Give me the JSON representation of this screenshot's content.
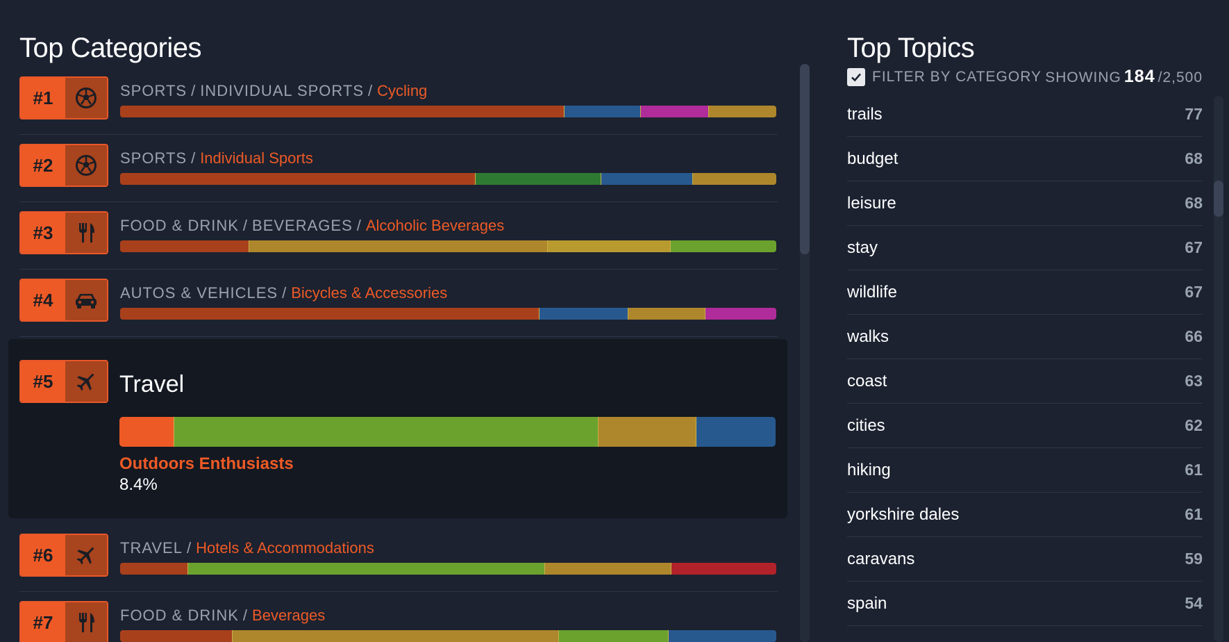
{
  "left_heading": "Top Categories",
  "right_heading": "Top Topics",
  "colors": {
    "orange": "#ee5a26",
    "rust": "#a9401c",
    "blue": "#27598f",
    "magenta": "#b02c9a",
    "gold": "#ae862b",
    "green": "#2f7a33",
    "lime": "#6ba22e",
    "red": "#b2222b"
  },
  "categories": [
    {
      "rank": "#1",
      "icon": "soccer-ball-icon",
      "path": [
        "SPORTS",
        "INDIVIDUAL SPORTS"
      ],
      "leaf": "Cycling",
      "segments": [
        {
          "color": "#a9401c",
          "share": 0.677
        },
        {
          "color": "#27598f",
          "share": 0.117
        },
        {
          "color": "#b02c9a",
          "share": 0.103
        },
        {
          "color": "#ae862b",
          "share": 0.103
        }
      ]
    },
    {
      "rank": "#2",
      "icon": "soccer-ball-icon",
      "path": [
        "SPORTS"
      ],
      "leaf": "Individual Sports",
      "segments": [
        {
          "color": "#a9401c",
          "share": 0.542
        },
        {
          "color": "#2f7a33",
          "share": 0.191
        },
        {
          "color": "#27598f",
          "share": 0.14
        },
        {
          "color": "#ae862b",
          "share": 0.127
        }
      ]
    },
    {
      "rank": "#3",
      "icon": "fork-knife-icon",
      "path": [
        "FOOD & DRINK",
        "BEVERAGES"
      ],
      "leaf": "Alcoholic Beverages",
      "segments": [
        {
          "color": "#a9401c",
          "share": 0.197
        },
        {
          "color": "#ae862b",
          "share": 0.455
        },
        {
          "color": "#b99a2f",
          "share": 0.187
        },
        {
          "color": "#6ba22e",
          "share": 0.161
        }
      ]
    },
    {
      "rank": "#4",
      "icon": "car-icon",
      "path": [
        "AUTOS & VEHICLES"
      ],
      "leaf": "Bicycles & Accessories",
      "segments": [
        {
          "color": "#a9401c",
          "share": 0.639
        },
        {
          "color": "#27598f",
          "share": 0.136
        },
        {
          "color": "#ae862b",
          "share": 0.117
        },
        {
          "color": "#b02c9a",
          "share": 0.108
        }
      ]
    },
    {
      "rank": "#5",
      "icon": "airplane-icon",
      "title": "Travel",
      "expanded": true,
      "highlight_label": "Outdoors Enthusiasts",
      "highlight_value": "8.4%",
      "segments": [
        {
          "color": "#ee5a26",
          "share": 0.084
        },
        {
          "color": "#6ba22e",
          "share": 0.646
        },
        {
          "color": "#ae862b",
          "share": 0.149
        },
        {
          "color": "#27598f",
          "share": 0.121
        }
      ]
    },
    {
      "rank": "#6",
      "icon": "airplane-icon",
      "path": [
        "TRAVEL"
      ],
      "leaf": "Hotels & Accommodations",
      "segments": [
        {
          "color": "#a9401c",
          "share": 0.104
        },
        {
          "color": "#6ba22e",
          "share": 0.544
        },
        {
          "color": "#ae862b",
          "share": 0.192
        },
        {
          "color": "#b2222b",
          "share": 0.16
        }
      ]
    },
    {
      "rank": "#7",
      "icon": "fork-knife-icon",
      "path": [
        "FOOD & DRINK"
      ],
      "leaf": "Beverages",
      "segments": [
        {
          "color": "#a9401c",
          "share": 0.171
        },
        {
          "color": "#ae862b",
          "share": 0.498
        },
        {
          "color": "#6ba22e",
          "share": 0.167
        },
        {
          "color": "#27598f",
          "share": 0.164
        }
      ]
    }
  ],
  "filter": {
    "label": "FILTER BY CATEGORY",
    "checked": true
  },
  "showing": {
    "prefix": "SHOWING",
    "count": "184",
    "total": "/2,500"
  },
  "topics": [
    {
      "name": "trails",
      "count": "77"
    },
    {
      "name": "budget",
      "count": "68"
    },
    {
      "name": "leisure",
      "count": "68"
    },
    {
      "name": "stay",
      "count": "67"
    },
    {
      "name": "wildlife",
      "count": "67"
    },
    {
      "name": "walks",
      "count": "66"
    },
    {
      "name": "coast",
      "count": "63"
    },
    {
      "name": "cities",
      "count": "62"
    },
    {
      "name": "hiking",
      "count": "61"
    },
    {
      "name": "yorkshire dales",
      "count": "61"
    },
    {
      "name": "caravans",
      "count": "59"
    },
    {
      "name": "spain",
      "count": "54"
    }
  ]
}
